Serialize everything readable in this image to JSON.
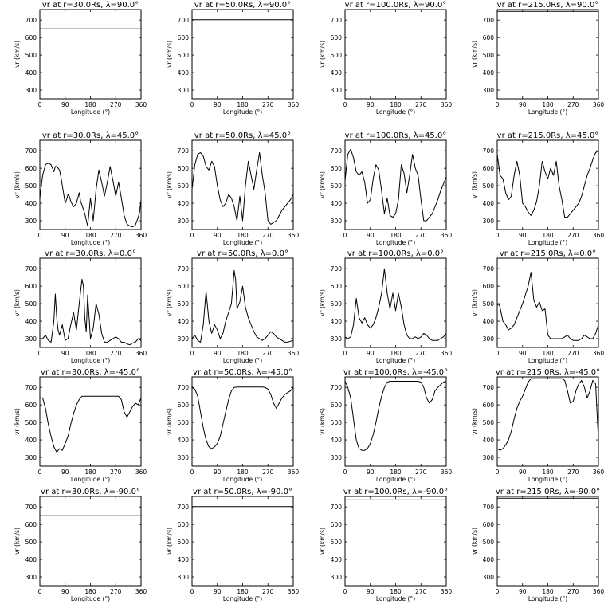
{
  "chart_data": {
    "type": "line",
    "layout": "5x4 grid",
    "xlabel": "Longitude (°)",
    "ylabel": "vr (km/s)",
    "xlim": [
      0,
      360
    ],
    "ylim": [
      250,
      760
    ],
    "xticks": [
      "0",
      "90",
      "180",
      "270",
      "360"
    ],
    "yticks": [
      "300",
      "400",
      "500",
      "600",
      "700"
    ],
    "line_color": "#000000",
    "panels": [
      {
        "title": "vr at r=30.0Rs, λ=90.0°",
        "x": [
          0,
          360
        ],
        "y": [
          650,
          650
        ]
      },
      {
        "title": "vr at r=50.0Rs, λ=90.0°",
        "x": [
          0,
          360
        ],
        "y": [
          702,
          702
        ]
      },
      {
        "title": "vr at r=100.0Rs, λ=90.0°",
        "x": [
          0,
          360
        ],
        "y": [
          735,
          735
        ]
      },
      {
        "title": "vr at r=215.0Rs, λ=90.0°",
        "x": [
          0,
          360
        ],
        "y": [
          750,
          750
        ]
      },
      {
        "title": "vr at r=30.0Rs, λ=45.0°",
        "x": [
          0,
          10,
          20,
          30,
          40,
          50,
          55,
          60,
          70,
          75,
          80,
          90,
          95,
          100,
          105,
          110,
          120,
          130,
          140,
          145,
          150,
          160,
          170,
          180,
          190,
          200,
          210,
          220,
          230,
          240,
          250,
          260,
          270,
          280,
          290,
          300,
          310,
          320,
          330,
          340,
          350,
          355,
          360
        ],
        "y": [
          430,
          560,
          620,
          630,
          620,
          580,
          610,
          610,
          590,
          550,
          500,
          400,
          420,
          450,
          440,
          410,
          380,
          400,
          460,
          410,
          390,
          340,
          270,
          430,
          300,
          480,
          590,
          520,
          440,
          520,
          610,
          530,
          440,
          520,
          430,
          330,
          280,
          270,
          265,
          275,
          320,
          350,
          420
        ]
      },
      {
        "title": "vr at r=50.0Rs, λ=45.0°",
        "x": [
          0,
          10,
          20,
          30,
          40,
          50,
          60,
          70,
          80,
          90,
          100,
          110,
          120,
          130,
          140,
          150,
          160,
          170,
          180,
          190,
          200,
          210,
          220,
          230,
          240,
          250,
          260,
          270,
          280,
          290,
          300,
          310,
          320,
          330,
          340,
          350,
          360
        ],
        "y": [
          480,
          620,
          680,
          690,
          670,
          610,
          590,
          640,
          610,
          500,
          420,
          380,
          400,
          450,
          430,
          380,
          300,
          440,
          300,
          500,
          640,
          560,
          480,
          590,
          690,
          560,
          460,
          300,
          280,
          290,
          300,
          330,
          360,
          380,
          400,
          420,
          450
        ]
      },
      {
        "title": "vr at r=100.0Rs, λ=45.0°",
        "x": [
          0,
          10,
          20,
          30,
          40,
          50,
          60,
          70,
          80,
          90,
          100,
          110,
          120,
          130,
          140,
          150,
          160,
          170,
          180,
          190,
          200,
          210,
          220,
          230,
          240,
          250,
          260,
          270,
          280,
          290,
          300,
          310,
          320,
          330,
          340,
          350,
          360
        ],
        "y": [
          530,
          680,
          710,
          660,
          580,
          560,
          580,
          520,
          400,
          420,
          540,
          620,
          590,
          470,
          340,
          430,
          330,
          320,
          340,
          420,
          620,
          570,
          460,
          560,
          680,
          600,
          560,
          420,
          300,
          300,
          320,
          340,
          380,
          420,
          470,
          510,
          550
        ]
      },
      {
        "title": "vr at r=215.0Rs, λ=45.0°",
        "x": [
          0,
          10,
          20,
          30,
          40,
          50,
          60,
          70,
          80,
          90,
          100,
          110,
          120,
          130,
          140,
          150,
          160,
          170,
          180,
          190,
          200,
          210,
          220,
          230,
          240,
          250,
          260,
          270,
          280,
          290,
          300,
          310,
          320,
          330,
          340,
          350,
          360
        ],
        "y": [
          680,
          560,
          540,
          460,
          420,
          440,
          560,
          640,
          560,
          400,
          380,
          350,
          330,
          360,
          410,
          500,
          640,
          580,
          540,
          600,
          560,
          640,
          500,
          420,
          320,
          320,
          340,
          360,
          380,
          400,
          440,
          500,
          560,
          600,
          650,
          690,
          700
        ]
      },
      {
        "title": "vr at r=30.0Rs, λ=0.0°",
        "x": [
          0,
          10,
          20,
          30,
          40,
          50,
          55,
          60,
          65,
          70,
          80,
          90,
          100,
          110,
          120,
          130,
          140,
          150,
          155,
          160,
          165,
          170,
          175,
          180,
          190,
          200,
          210,
          220,
          230,
          240,
          250,
          260,
          270,
          280,
          290,
          300,
          310,
          320,
          330,
          340,
          350,
          360
        ],
        "y": [
          300,
          300,
          320,
          290,
          280,
          400,
          555,
          420,
          350,
          320,
          380,
          290,
          300,
          380,
          450,
          350,
          500,
          640,
          600,
          420,
          340,
          550,
          430,
          300,
          360,
          500,
          440,
          330,
          280,
          280,
          290,
          300,
          310,
          300,
          280,
          280,
          270,
          265,
          275,
          280,
          300,
          290
        ]
      },
      {
        "title": "vr at r=50.0Rs, λ=0.0°",
        "x": [
          0,
          10,
          20,
          30,
          40,
          50,
          60,
          70,
          80,
          90,
          100,
          110,
          120,
          130,
          140,
          150,
          155,
          160,
          170,
          180,
          190,
          200,
          210,
          220,
          230,
          240,
          250,
          260,
          270,
          280,
          290,
          300,
          310,
          320,
          330,
          340,
          350,
          360
        ],
        "y": [
          300,
          320,
          290,
          280,
          380,
          570,
          400,
          330,
          380,
          350,
          300,
          330,
          400,
          450,
          500,
          690,
          640,
          470,
          510,
          600,
          480,
          420,
          380,
          340,
          310,
          300,
          290,
          300,
          320,
          340,
          330,
          310,
          300,
          290,
          280,
          280,
          285,
          290
        ]
      },
      {
        "title": "vr at r=100.0Rs, λ=0.0°",
        "x": [
          0,
          10,
          20,
          30,
          40,
          50,
          60,
          70,
          80,
          90,
          100,
          110,
          120,
          130,
          140,
          150,
          160,
          170,
          180,
          190,
          200,
          210,
          220,
          230,
          240,
          250,
          260,
          270,
          280,
          290,
          300,
          310,
          320,
          330,
          340,
          350,
          360
        ],
        "y": [
          310,
          300,
          310,
          380,
          530,
          420,
          390,
          420,
          380,
          360,
          380,
          420,
          480,
          560,
          700,
          560,
          470,
          560,
          460,
          560,
          480,
          380,
          320,
          300,
          300,
          310,
          300,
          310,
          330,
          320,
          300,
          290,
          290,
          290,
          300,
          310,
          330
        ]
      },
      {
        "title": "vr at r=215.0Rs, λ=0.0°",
        "x": [
          0,
          5,
          10,
          20,
          30,
          40,
          50,
          60,
          70,
          80,
          90,
          100,
          110,
          120,
          130,
          140,
          150,
          160,
          170,
          180,
          190,
          200,
          210,
          220,
          230,
          240,
          250,
          260,
          270,
          280,
          290,
          300,
          310,
          320,
          330,
          340,
          350,
          360
        ],
        "y": [
          490,
          500,
          480,
          400,
          380,
          350,
          360,
          380,
          420,
          460,
          500,
          550,
          600,
          680,
          520,
          480,
          510,
          460,
          470,
          320,
          300,
          300,
          300,
          300,
          300,
          310,
          320,
          300,
          290,
          290,
          290,
          300,
          320,
          310,
          300,
          300,
          330,
          380
        ]
      },
      {
        "title": "vr at r=30.0Rs, λ=-45.0°",
        "x": [
          0,
          10,
          20,
          30,
          40,
          50,
          60,
          70,
          80,
          90,
          100,
          110,
          120,
          130,
          140,
          150,
          160,
          170,
          180,
          190,
          200,
          210,
          220,
          230,
          240,
          250,
          260,
          270,
          280,
          290,
          300,
          310,
          320,
          330,
          340,
          350,
          360
        ],
        "y": [
          640,
          640,
          580,
          490,
          420,
          360,
          330,
          350,
          340,
          380,
          420,
          490,
          550,
          600,
          630,
          650,
          650,
          650,
          650,
          650,
          650,
          650,
          650,
          650,
          650,
          650,
          650,
          650,
          650,
          630,
          560,
          530,
          560,
          590,
          610,
          600,
          640
        ]
      },
      {
        "title": "vr at r=50.0Rs, λ=-45.0°",
        "x": [
          0,
          10,
          20,
          30,
          40,
          50,
          60,
          70,
          80,
          90,
          100,
          110,
          120,
          130,
          140,
          150,
          160,
          170,
          180,
          190,
          200,
          210,
          220,
          230,
          240,
          250,
          260,
          270,
          280,
          290,
          300,
          310,
          320,
          330,
          340,
          350,
          360
        ],
        "y": [
          700,
          690,
          650,
          560,
          470,
          400,
          360,
          350,
          360,
          380,
          420,
          490,
          560,
          630,
          680,
          700,
          702,
          702,
          702,
          702,
          702,
          702,
          702,
          702,
          702,
          702,
          700,
          690,
          660,
          610,
          580,
          610,
          640,
          660,
          670,
          680,
          700
        ]
      },
      {
        "title": "vr at r=100.0Rs, λ=-45.0°",
        "x": [
          0,
          10,
          20,
          30,
          40,
          50,
          60,
          70,
          80,
          90,
          100,
          110,
          120,
          130,
          140,
          150,
          160,
          170,
          180,
          190,
          200,
          210,
          220,
          230,
          240,
          250,
          260,
          270,
          280,
          290,
          300,
          310,
          320,
          330,
          340,
          350,
          360
        ],
        "y": [
          735,
          700,
          640,
          520,
          400,
          350,
          340,
          340,
          350,
          380,
          430,
          500,
          580,
          650,
          700,
          730,
          735,
          735,
          735,
          735,
          735,
          735,
          735,
          735,
          735,
          735,
          735,
          730,
          700,
          640,
          610,
          630,
          680,
          700,
          715,
          730,
          735
        ]
      },
      {
        "title": "vr at r=215.0Rs, λ=-45.0°",
        "x": [
          0,
          10,
          20,
          30,
          40,
          50,
          60,
          70,
          80,
          90,
          100,
          110,
          120,
          130,
          140,
          150,
          160,
          170,
          180,
          190,
          200,
          210,
          220,
          230,
          240,
          250,
          260,
          270,
          280,
          290,
          300,
          310,
          320,
          330,
          340,
          350,
          355,
          360
        ],
        "y": [
          350,
          340,
          350,
          370,
          400,
          450,
          520,
          580,
          620,
          650,
          690,
          730,
          750,
          750,
          750,
          750,
          750,
          750,
          750,
          750,
          750,
          750,
          750,
          750,
          740,
          680,
          610,
          620,
          680,
          720,
          740,
          700,
          640,
          680,
          740,
          720,
          560,
          400
        ]
      },
      {
        "title": "vr at r=30.0Rs, λ=-90.0°",
        "x": [
          0,
          360
        ],
        "y": [
          650,
          650
        ]
      },
      {
        "title": "vr at r=50.0Rs, λ=-90.0°",
        "x": [
          0,
          360
        ],
        "y": [
          702,
          702
        ]
      },
      {
        "title": "vr at r=100.0Rs, λ=-90.0°",
        "x": [
          0,
          360
        ],
        "y": [
          740,
          740
        ]
      },
      {
        "title": "vr at r=215.0Rs, λ=-90.0°",
        "x": [
          0,
          360
        ],
        "y": [
          750,
          750
        ]
      }
    ]
  }
}
